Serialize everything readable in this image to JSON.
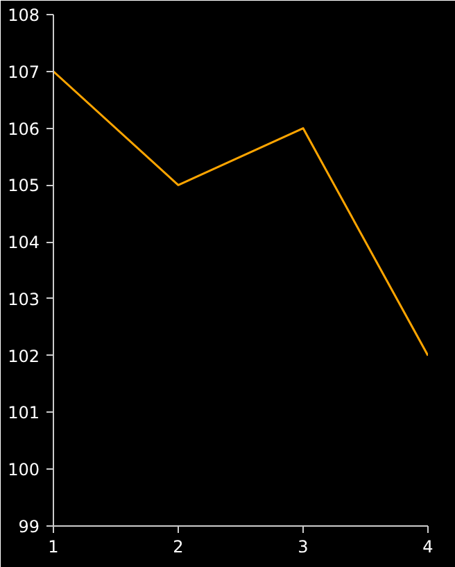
{
  "chart_data": {
    "type": "line",
    "x": [
      1,
      2,
      3,
      4
    ],
    "series": [
      {
        "color": "#ffa500",
        "values": [
          107,
          105,
          106,
          102
        ]
      }
    ],
    "xlim": [
      1,
      4
    ],
    "xticks": [
      1,
      2,
      3,
      4
    ],
    "ylim": [
      99,
      108
    ],
    "yticks": [
      99,
      100,
      101,
      102,
      103,
      104,
      105,
      106,
      107,
      108
    ],
    "grid": false,
    "marker": "none",
    "line_style": "solid"
  }
}
